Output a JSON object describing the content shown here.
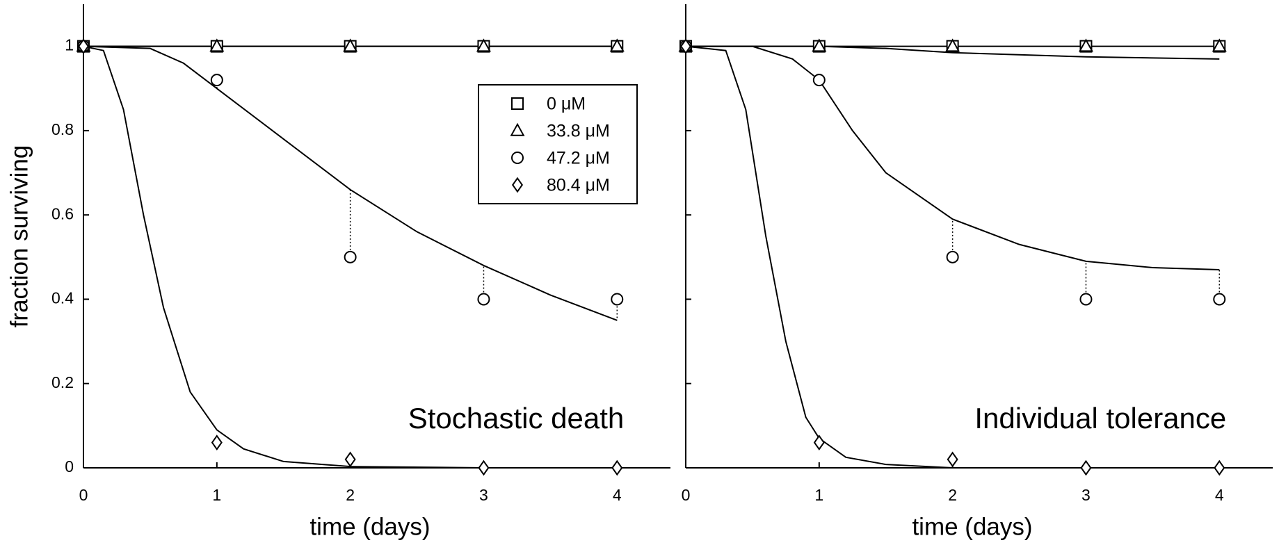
{
  "chart_data": [
    {
      "type": "scatter",
      "xlabel": "time (days)",
      "ylabel": "fraction surviving",
      "annotation": "Stochastic death",
      "xlim": [
        0,
        4.4
      ],
      "ylim": [
        0,
        1.1
      ],
      "xticks": [
        0,
        1,
        2,
        3,
        4
      ],
      "yticks": [
        0,
        0.2,
        0.4,
        0.6,
        0.8,
        1
      ],
      "ytick_labels": true,
      "legend": "upper right",
      "x": [
        0,
        1,
        2,
        3,
        4
      ],
      "series": [
        {
          "name": "0 μM",
          "color": "#000000",
          "marker": "square",
          "values": [
            1,
            1,
            1,
            1,
            1
          ],
          "fit": {
            "x": [
              0,
              4
            ],
            "values": [
              1,
              1
            ]
          }
        },
        {
          "name": "33.8 μM",
          "color": "#000000",
          "marker": "triangle",
          "values": [
            1,
            1,
            1,
            1,
            1
          ],
          "fit": {
            "x": [
              0,
              4
            ],
            "values": [
              1,
              1
            ]
          }
        },
        {
          "name": "47.2 μM",
          "color": "#000000",
          "marker": "circle",
          "values": [
            1,
            0.92,
            0.5,
            0.4,
            0.4
          ],
          "residuals": true,
          "fit": {
            "x": [
              0,
              0.5,
              0.75,
              1,
              1.5,
              2,
              2.5,
              3,
              3.5,
              4
            ],
            "values": [
              1,
              0.995,
              0.96,
              0.9,
              0.78,
              0.66,
              0.56,
              0.48,
              0.41,
              0.35
            ]
          }
        },
        {
          "name": "80.4 μM",
          "color": "#000000",
          "marker": "diamond",
          "values": [
            1,
            0.06,
            0.02,
            0,
            0
          ],
          "fit": {
            "x": [
              0,
              0.15,
              0.3,
              0.45,
              0.6,
              0.8,
              1,
              1.2,
              1.5,
              2,
              3,
              4
            ],
            "values": [
              1,
              0.99,
              0.85,
              0.6,
              0.38,
              0.18,
              0.09,
              0.045,
              0.015,
              0.003,
              0,
              0
            ]
          }
        }
      ]
    },
    {
      "type": "scatter",
      "xlabel": "time (days)",
      "annotation": "Individual tolerance",
      "xlim": [
        0,
        4.4
      ],
      "ylim": [
        0,
        1.1
      ],
      "xticks": [
        0,
        1,
        2,
        3,
        4
      ],
      "yticks": [
        0,
        0.2,
        0.4,
        0.6,
        0.8,
        1
      ],
      "ytick_labels": false,
      "x": [
        0,
        1,
        2,
        3,
        4
      ],
      "series": [
        {
          "color": "#000000",
          "marker": "square",
          "values": [
            1,
            1,
            1,
            1,
            1
          ],
          "fit": {
            "x": [
              0,
              4
            ],
            "values": [
              1,
              1
            ]
          }
        },
        {
          "color": "#000000",
          "marker": "triangle",
          "values": [
            1,
            1,
            1,
            1,
            1
          ],
          "fit": {
            "x": [
              0,
              1,
              1.5,
              2,
              3,
              4
            ],
            "values": [
              1,
              1,
              0.995,
              0.985,
              0.975,
              0.97
            ]
          }
        },
        {
          "color": "#000000",
          "marker": "circle",
          "values": [
            1,
            0.92,
            0.5,
            0.4,
            0.4
          ],
          "residuals": true,
          "fit": {
            "x": [
              0,
              0.5,
              0.8,
              1,
              1.25,
              1.5,
              2,
              2.5,
              3,
              3.5,
              4
            ],
            "values": [
              1,
              1,
              0.97,
              0.92,
              0.8,
              0.7,
              0.59,
              0.53,
              0.49,
              0.475,
              0.47
            ]
          }
        },
        {
          "color": "#000000",
          "marker": "diamond",
          "values": [
            1,
            0.06,
            0.02,
            0,
            0
          ],
          "fit": {
            "x": [
              0,
              0.3,
              0.45,
              0.6,
              0.75,
              0.9,
              1,
              1.2,
              1.5,
              2,
              4
            ],
            "values": [
              1,
              0.99,
              0.85,
              0.55,
              0.3,
              0.12,
              0.07,
              0.025,
              0.008,
              0,
              0
            ]
          }
        }
      ]
    }
  ]
}
